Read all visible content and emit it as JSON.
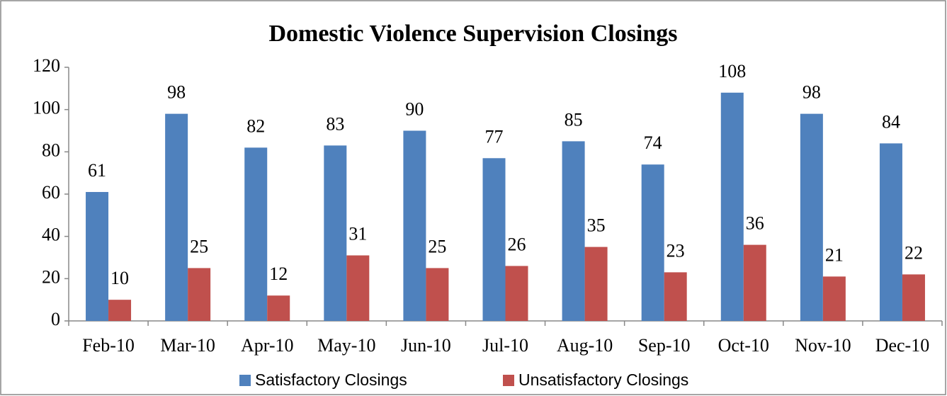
{
  "chart_data": {
    "type": "bar",
    "title": "Domestic Violence Supervision Closings",
    "categories": [
      "Feb-10",
      "Mar-10",
      "Apr-10",
      "May-10",
      "Jun-10",
      "Jul-10",
      "Aug-10",
      "Sep-10",
      "Oct-10",
      "Nov-10",
      "Dec-10"
    ],
    "series": [
      {
        "name": "Satisfactory Closings",
        "color": "#4f81bd",
        "values": [
          61,
          98,
          82,
          83,
          90,
          77,
          85,
          74,
          108,
          98,
          84
        ]
      },
      {
        "name": "Unsatisfactory Closings",
        "color": "#c0504d",
        "values": [
          10,
          25,
          12,
          31,
          25,
          26,
          35,
          23,
          36,
          21,
          22
        ]
      }
    ],
    "ylim": [
      0,
      120
    ],
    "yticks": [
      0,
      20,
      40,
      60,
      80,
      100,
      120
    ],
    "grid": false,
    "legend": "bottom"
  }
}
